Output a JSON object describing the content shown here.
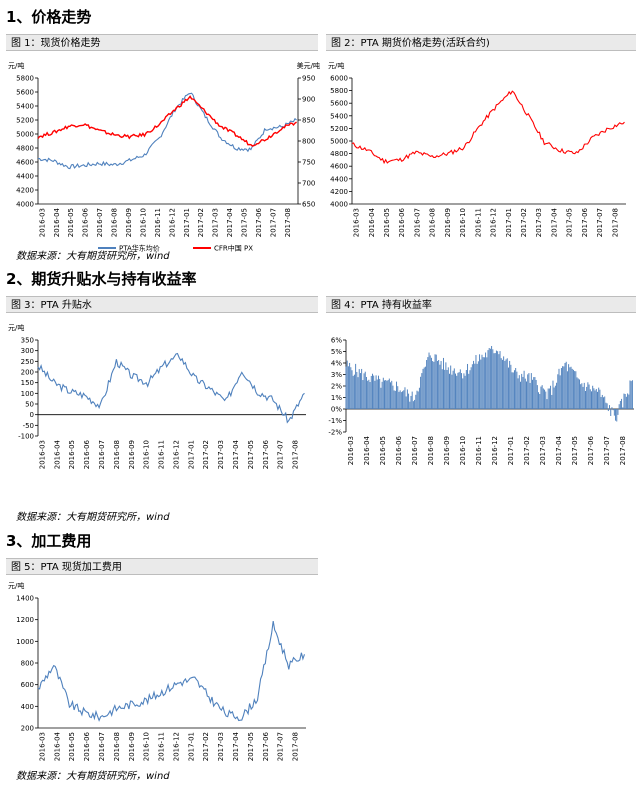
{
  "sections": [
    {
      "title": "1、价格走势"
    },
    {
      "title": "2、期货升贴水与持有收益率"
    },
    {
      "title": "3、加工费用"
    }
  ],
  "captions": {
    "fig1": "图 1：现货价格走势",
    "fig2": "图 2：PTA 期货价格走势(活跃合约)",
    "fig3": "图 3：PTA 升贴水",
    "fig4": "图 4：PTA 持有收益率",
    "fig5": "图 5：PTA 现货加工费用"
  },
  "source_text": "数据来源：大有期货研究所，wind",
  "colors": {
    "blue": "#4f81bd",
    "red": "#ff0000",
    "caption_bg": "#eaeaea"
  },
  "chart_data": [
    {
      "id": "fig1",
      "type": "line",
      "x": [
        "2016-03",
        "2016-04",
        "2016-05",
        "2016-06",
        "2016-07",
        "2016-08",
        "2016-09",
        "2016-10",
        "2016-11",
        "2016-12",
        "2017-01",
        "2017-02",
        "2017-03",
        "2017-04",
        "2017-05",
        "2017-06",
        "2017-07",
        "2017-08"
      ],
      "ylabel": "元/吨",
      "y2label": "美元/吨",
      "ylim": [
        4000,
        5800
      ],
      "yticks": [
        4000,
        4200,
        4400,
        4600,
        4800,
        5000,
        5200,
        5400,
        5600,
        5800
      ],
      "y2lim": [
        650,
        950
      ],
      "y2ticks": [
        650,
        700,
        750,
        800,
        850,
        900,
        950
      ],
      "legend": "bottom",
      "series": [
        {
          "name": "PTA华东均价",
          "axis": "left",
          "color": "#4f81bd",
          "values": [
            4650,
            4620,
            4530,
            4550,
            4580,
            4560,
            4620,
            4700,
            4950,
            5350,
            5600,
            5250,
            4950,
            4800,
            4780,
            5080,
            5100,
            5200
          ]
        },
        {
          "name": "CFR中国 PX",
          "axis": "right",
          "color": "#ff0000",
          "values": [
            810,
            820,
            835,
            840,
            825,
            815,
            810,
            815,
            840,
            875,
            905,
            870,
            835,
            815,
            790,
            805,
            830,
            845
          ]
        }
      ]
    },
    {
      "id": "fig2",
      "type": "line",
      "x": [
        "2016-03",
        "2016-04",
        "2016-05",
        "2016-06",
        "2016-07",
        "2016-08",
        "2016-09",
        "2016-10",
        "2016-11",
        "2016-12",
        "2017-01",
        "2017-02",
        "2017-03",
        "2017-04",
        "2017-05",
        "2017-06",
        "2017-07",
        "2017-08"
      ],
      "ylabel": "元/吨",
      "ylim": [
        4000,
        6000
      ],
      "yticks": [
        4000,
        4200,
        4400,
        4600,
        4800,
        5000,
        5200,
        5400,
        5600,
        5800,
        6000
      ],
      "series": [
        {
          "color": "#ff0000",
          "values": [
            4950,
            4850,
            4680,
            4700,
            4820,
            4750,
            4800,
            4900,
            5250,
            5550,
            5800,
            5400,
            4980,
            4850,
            4800,
            5050,
            5200,
            5300
          ]
        }
      ]
    },
    {
      "id": "fig3",
      "type": "line",
      "x": [
        "2016-03",
        "2016-04",
        "2016-05",
        "2016-06",
        "2016-07",
        "2016-08",
        "2016-09",
        "2016-10",
        "2016-11",
        "2016-12",
        "2017-01",
        "2017-02",
        "2017-03",
        "2017-04",
        "2017-05",
        "2017-06",
        "2017-07",
        "2017-08"
      ],
      "ylabel": "元/吨",
      "ylim": [
        -100,
        350
      ],
      "yticks": [
        -100,
        -50,
        0,
        50,
        100,
        150,
        200,
        250,
        300,
        350
      ],
      "series": [
        {
          "color": "#4f81bd",
          "values": [
            230,
            150,
            110,
            90,
            40,
            250,
            180,
            150,
            230,
            280,
            170,
            120,
            60,
            210,
            110,
            70,
            -30,
            100
          ]
        }
      ]
    },
    {
      "id": "fig4",
      "type": "bar",
      "x": [
        "2016-03",
        "2016-04",
        "2016-05",
        "2016-06",
        "2016-07",
        "2016-08",
        "2016-09",
        "2016-10",
        "2016-11",
        "2016-12",
        "2017-01",
        "2017-02",
        "2017-03",
        "2017-04",
        "2017-05",
        "2017-06",
        "2017-07",
        "2017-08"
      ],
      "ylim": [
        -2,
        6
      ],
      "yticks": [
        -2,
        -1,
        0,
        1,
        2,
        3,
        4,
        5,
        6
      ],
      "ytick_suffix": "%",
      "series": [
        {
          "color": "#4f81bd",
          "values": [
            3.8,
            3.0,
            2.3,
            2.0,
            0.9,
            4.8,
            3.6,
            3.2,
            4.5,
            5.3,
            3.1,
            2.6,
            1.2,
            3.9,
            2.2,
            1.5,
            -0.8,
            2.5
          ]
        }
      ]
    },
    {
      "id": "fig5",
      "type": "line",
      "x": [
        "2016-03",
        "2016-04",
        "2016-05",
        "2016-06",
        "2016-07",
        "2016-08",
        "2016-09",
        "2016-10",
        "2016-11",
        "2016-12",
        "2017-01",
        "2017-02",
        "2017-03",
        "2017-04",
        "2017-05",
        "2017-06",
        "2017-07",
        "2017-08"
      ],
      "ylabel": "元/吨",
      "ylim": [
        200,
        1400
      ],
      "yticks": [
        200,
        400,
        600,
        800,
        1000,
        1200,
        1400
      ],
      "series": [
        {
          "color": "#4f81bd",
          "values": [
            560,
            780,
            420,
            340,
            300,
            380,
            420,
            460,
            540,
            620,
            650,
            470,
            330,
            300,
            480,
            1150,
            780,
            880
          ]
        }
      ]
    }
  ]
}
